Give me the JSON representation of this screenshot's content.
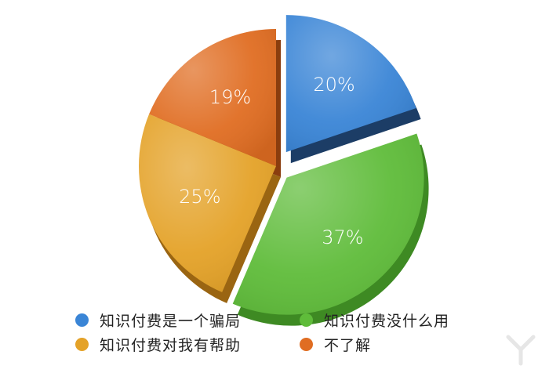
{
  "chart_data": {
    "type": "pie",
    "title": "",
    "legend_position": "bottom",
    "slices": [
      {
        "label": "知识付费是一个骗局",
        "value": 20,
        "display": "20%",
        "color": "#3a85d6",
        "side": "#1c3d66",
        "exploded": true
      },
      {
        "label": "知识付费没什么用",
        "value": 37,
        "display": "37%",
        "color": "#5fbc3a",
        "side": "#3e8a23",
        "exploded": true
      },
      {
        "label": "知识付费对我有帮助",
        "value": 25,
        "display": "25%",
        "color": "#e4a228",
        "side": "#9a6512",
        "exploded": false
      },
      {
        "label": "不了解",
        "value": 19,
        "display": "19%",
        "color": "#e06d22",
        "side": "#8a3d0e",
        "exploded": false
      }
    ]
  }
}
